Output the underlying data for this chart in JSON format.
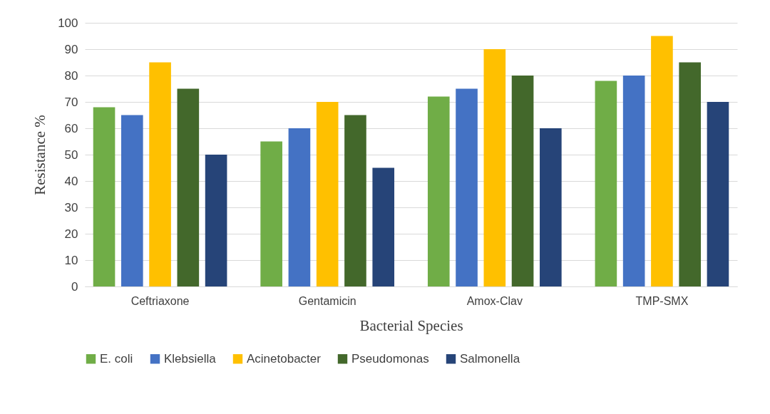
{
  "chart_data": {
    "type": "bar",
    "xlabel": "Bacterial Species",
    "ylabel": "Resistance %",
    "categories": [
      "Ceftriaxone",
      "Gentamicin",
      "Amox-Clav",
      "TMP-SMX"
    ],
    "series": [
      {
        "name": "E. coli",
        "color": "#70ad47",
        "values": [
          68,
          55,
          72,
          78
        ]
      },
      {
        "name": "Klebsiella",
        "color": "#4472c4",
        "values": [
          65,
          60,
          75,
          80
        ]
      },
      {
        "name": "Acinetobacter",
        "color": "#ffc000",
        "values": [
          85,
          70,
          90,
          95
        ]
      },
      {
        "name": "Pseudomonas",
        "color": "#43682b",
        "values": [
          75,
          65,
          80,
          85
        ]
      },
      {
        "name": "Salmonella",
        "color": "#264478",
        "values": [
          50,
          45,
          60,
          70
        ]
      }
    ],
    "ylim": [
      0,
      100
    ],
    "yticks": [
      0,
      10,
      20,
      30,
      40,
      50,
      60,
      70,
      80,
      90,
      100
    ],
    "grid": "y",
    "legend": "bottom"
  }
}
